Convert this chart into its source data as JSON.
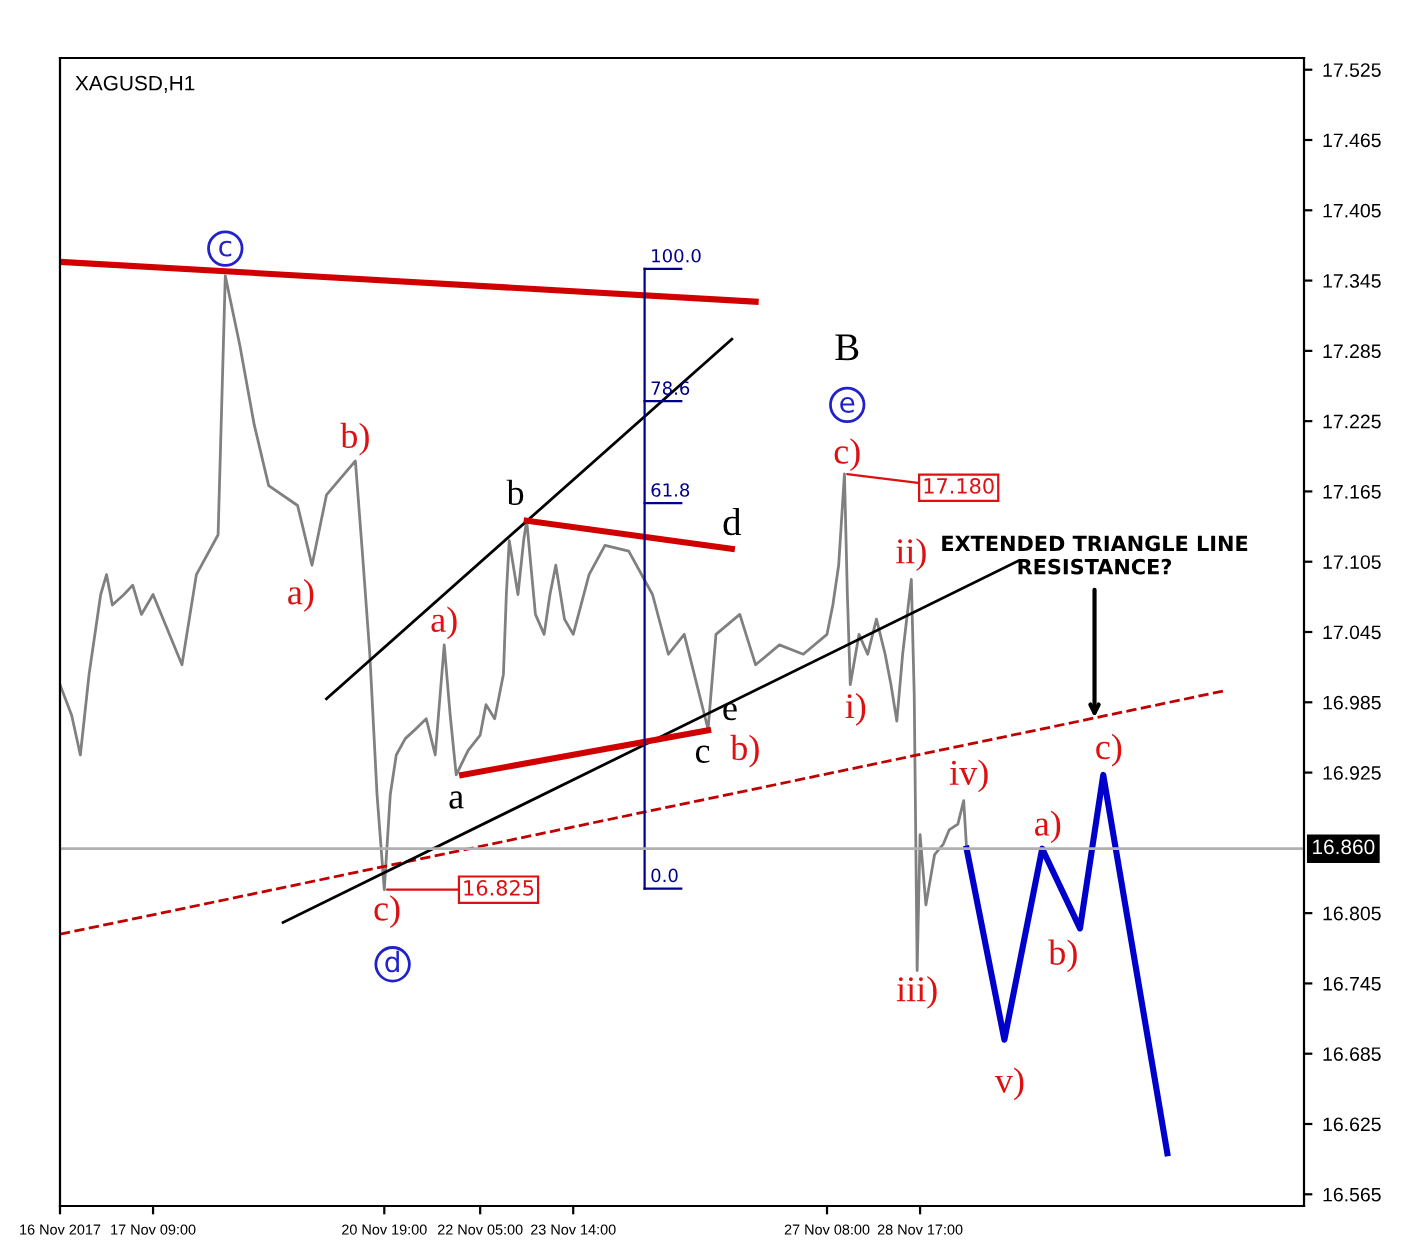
{
  "chart_data": {
    "type": "line",
    "title": "XAGUSD,H1",
    "xlim": [
      "2017-11-16T00:00",
      "2017-12-04T09:09"
    ],
    "xticks": [
      {
        "value": "2017-11-16T00:00",
        "label": "16 Nov 2017"
      },
      {
        "value": "2017-11-17T09:00",
        "label": "17 Nov 09:00"
      },
      {
        "value": "2017-11-20T19:00",
        "label": "20 Nov 19:00"
      },
      {
        "value": "2017-11-22T05:00",
        "label": "22 Nov 05:00"
      },
      {
        "value": "2017-11-23T14:00",
        "label": "23 Nov 14:00"
      },
      {
        "value": "2017-11-27T08:00",
        "label": "27 Nov 08:00"
      },
      {
        "value": "2017-11-28T17:00",
        "label": "28 Nov 17:00"
      }
    ],
    "ylim": [
      16.555,
      17.535
    ],
    "yticks": [
      17.525,
      17.465,
      17.405,
      17.345,
      17.285,
      17.225,
      17.165,
      17.105,
      17.045,
      16.985,
      16.925,
      16.805,
      16.745,
      16.685,
      16.625,
      16.565
    ],
    "grid": false,
    "legend": false,
    "marker": "none",
    "series": [
      {
        "color": "#808080",
        "x": [
          "2017-11-16T00:00",
          "2017-11-16T04:08",
          "2017-11-16T07:13",
          "2017-11-16T10:19",
          "2017-11-16T14:26",
          "2017-11-16T16:30",
          "2017-11-16T18:34",
          "2017-11-16T22:41",
          "2017-11-17T01:47",
          "2017-11-17T04:52",
          "2017-11-17T09:00",
          "2017-11-17T19:15",
          "2017-11-18T00:22",
          "2017-11-18T08:04",
          "2017-11-18T10:37",
          "2017-11-18T15:45",
          "2017-11-18T20:52",
          "2017-11-19T02:00",
          "2017-11-19T12:15",
          "2017-11-19T17:22",
          "2017-11-19T22:30",
          "2017-11-20T08:45",
          "2017-11-20T11:19",
          "2017-11-20T13:52",
          "2017-11-20T16:26",
          "2017-11-20T19:00",
          "2017-11-20T21:07",
          "2017-11-20T23:15",
          "2017-11-21T02:26",
          "2017-11-21T05:37",
          "2017-11-21T09:52",
          "2017-11-21T13:04",
          "2017-11-21T16:15",
          "2017-11-21T18:22",
          "2017-11-21T20:30",
          "2017-11-22T00:45",
          "2017-11-22T05:00",
          "2017-11-22T07:04",
          "2017-11-22T10:09",
          "2017-11-22T13:15",
          "2017-11-22T14:17",
          "2017-11-22T15:19",
          "2017-11-22T18:24",
          "2017-11-22T20:28",
          "2017-11-22T21:30",
          "2017-11-23T00:36",
          "2017-11-23T03:41",
          "2017-11-23T05:45",
          "2017-11-23T07:49",
          "2017-11-23T10:54",
          "2017-11-23T14:00",
          "2017-11-23T19:37",
          "2017-11-24T01:15",
          "2017-11-24T09:41",
          "2017-11-24T18:07",
          "2017-11-24T23:45",
          "2017-11-25T05:22",
          "2017-11-25T13:49",
          "2017-11-25T16:37",
          "2017-11-26T01:04",
          "2017-11-26T06:41",
          "2017-11-26T15:07",
          "2017-11-26T23:34",
          "2017-11-27T08:00",
          "2017-11-27T10:04",
          "2017-11-27T12:08",
          "2017-11-27T14:11",
          "2017-11-27T15:13",
          "2017-11-27T16:15",
          "2017-11-27T19:21",
          "2017-11-27T22:26",
          "2017-11-28T01:32",
          "2017-11-28T04:37",
          "2017-11-28T06:41",
          "2017-11-28T08:45",
          "2017-11-28T10:49",
          "2017-11-28T13:54",
          "2017-11-28T14:56",
          "2017-11-28T15:58",
          "2017-11-28T17:00",
          "2017-11-28T19:04",
          "2017-11-28T22:09",
          "2017-11-29T01:15",
          "2017-11-29T03:19",
          "2017-11-29T06:24",
          "2017-11-29T08:28",
          "2017-11-29T09:30"
        ],
        "values": [
          17.0,
          16.974,
          16.94,
          17.009,
          17.077,
          17.094,
          17.068,
          17.077,
          17.085,
          17.06,
          17.077,
          17.017,
          17.094,
          17.128,
          17.349,
          17.29,
          17.222,
          17.17,
          17.153,
          17.102,
          17.162,
          17.191,
          17.11,
          17.026,
          16.906,
          16.825,
          16.906,
          16.94,
          16.954,
          16.961,
          16.971,
          16.94,
          17.034,
          16.974,
          16.923,
          16.944,
          16.957,
          16.983,
          16.971,
          17.009,
          17.077,
          17.123,
          17.077,
          17.124,
          17.14,
          17.06,
          17.043,
          17.077,
          17.102,
          17.056,
          17.043,
          17.094,
          17.119,
          17.114,
          17.077,
          17.026,
          17.043,
          16.962,
          17.043,
          17.06,
          17.017,
          17.034,
          17.026,
          17.043,
          17.068,
          17.102,
          17.18,
          17.077,
          17.0,
          17.043,
          17.026,
          17.056,
          17.026,
          17.0,
          16.969,
          17.026,
          17.09,
          16.991,
          16.756,
          16.872,
          16.812,
          16.855,
          16.864,
          16.876,
          16.881,
          16.901,
          16.86
        ]
      },
      {
        "color": "#0000cc",
        "x": [
          "2017-11-29T09:30",
          "2017-11-29T22:54",
          "2017-11-30T12:19",
          "2017-12-01T01:43",
          "2017-12-01T09:58",
          "2017-12-02T08:41"
        ],
        "values": [
          16.86,
          16.697,
          16.86,
          16.792,
          16.923,
          16.6
        ]
      },
      {
        "color": "#d00000",
        "x": [
          "2017-11-16T00:00",
          "2017-11-26T06:41"
        ],
        "values": [
          17.361,
          17.327
        ]
      },
      {
        "color": "#c00000",
        "line_style": "dashed",
        "x": [
          "2017-11-16T00:00",
          "2017-12-03T05:19"
        ],
        "values": [
          16.787,
          16.995
        ]
      },
      {
        "color": "#000000",
        "x": [
          "2017-11-19T22:30",
          "2017-11-25T22:15"
        ],
        "values": [
          16.988,
          17.295
        ]
      },
      {
        "color": "#000000",
        "x": [
          "2017-11-19T07:07",
          "2017-11-30T04:04"
        ],
        "values": [
          16.797,
          17.106
        ]
      },
      {
        "color": "#d00000",
        "x": [
          "2017-11-22T21:30",
          "2017-11-25T22:15"
        ],
        "values": [
          17.14,
          17.116
        ]
      },
      {
        "color": "#d00000",
        "x": [
          "2017-11-21T22:37",
          "2017-11-25T13:49"
        ],
        "values": [
          16.923,
          16.961
        ]
      },
      {
        "color": "#00008b",
        "x": [
          "2017-11-24T15:19",
          "2017-11-24T15:19"
        ],
        "values": [
          17.355,
          16.826
        ]
      },
      {
        "color": "#00008b",
        "x": [
          "2017-11-24T15:19",
          "2017-11-25T04:19"
        ],
        "values": [
          17.355,
          17.355
        ]
      },
      {
        "color": "#00008b",
        "x": [
          "2017-11-24T15:19",
          "2017-11-25T04:19"
        ],
        "values": [
          17.242,
          17.242
        ]
      },
      {
        "color": "#00008b",
        "x": [
          "2017-11-24T15:19",
          "2017-11-25T04:19"
        ],
        "values": [
          17.155,
          17.155
        ]
      },
      {
        "color": "#00008b",
        "x": [
          "2017-11-24T15:19",
          "2017-11-25T04:19"
        ],
        "values": [
          16.826,
          16.826
        ]
      }
    ],
    "ref_lines": [
      {
        "axis": "y",
        "value": 16.86,
        "label": "16.860",
        "color": "#b0b0b0"
      }
    ],
    "annotations": [
      {
        "text": "c",
        "x": "2017-11-18T10:37",
        "y": 17.349
      },
      {
        "text": "b)",
        "x": "2017-11-20T08:45",
        "y": 17.191
      },
      {
        "text": "a)",
        "x": "2017-11-19T17:22",
        "y": 17.102
      },
      {
        "text": "a)",
        "x": "2017-11-21T16:15",
        "y": 17.034
      },
      {
        "text": "a",
        "x": "2017-11-21T20:30",
        "y": 16.923
      },
      {
        "text": "b",
        "x": "2017-11-22T21:30",
        "y": 17.14
      },
      {
        "text": "d",
        "x": "2017-11-25T22:15",
        "y": 17.116
      },
      {
        "text": "c",
        "x": "2017-11-25T13:49",
        "y": 16.962
      },
      {
        "text": "e",
        "x": "2017-11-25T13:49",
        "y": 16.961
      },
      {
        "text": "b)",
        "x": "2017-11-25T13:49",
        "y": 16.962
      },
      {
        "text": "B",
        "x": "2017-11-27T14:11",
        "y": 17.18
      },
      {
        "text": "e",
        "x": "2017-11-27T14:11",
        "y": 17.18
      },
      {
        "text": "c)",
        "x": "2017-11-27T14:11",
        "y": 17.18
      },
      {
        "text": "17.180",
        "x": "2017-11-27T14:11",
        "y": 17.18
      },
      {
        "text": "ii)",
        "x": "2017-11-28T13:54",
        "y": 17.09
      },
      {
        "text": "i)",
        "x": "2017-11-27T16:15",
        "y": 17.0
      },
      {
        "text": "iii)",
        "x": "2017-11-28T15:58",
        "y": 16.756
      },
      {
        "text": "iv)",
        "x": "2017-11-29T08:28",
        "y": 16.901
      },
      {
        "text": "v)",
        "x": "2017-11-29T22:54",
        "y": 16.697
      },
      {
        "text": "a)",
        "x": "2017-11-30T12:19",
        "y": 16.86
      },
      {
        "text": "b)",
        "x": "2017-12-01T01:43",
        "y": 16.792
      },
      {
        "text": "c)",
        "x": "2017-12-01T09:58",
        "y": 16.923
      },
      {
        "text": "c)",
        "x": "2017-11-20T19:00",
        "y": 16.825
      },
      {
        "text": "d",
        "x": "2017-11-20T19:00",
        "y": 16.825
      },
      {
        "text": "16.825",
        "x": "2017-11-20T19:00",
        "y": 16.825
      },
      {
        "text": "100.0",
        "x": "2017-11-24T15:19",
        "y": 17.355
      },
      {
        "text": "78.6",
        "x": "2017-11-24T15:19",
        "y": 17.242
      },
      {
        "text": "61.8",
        "x": "2017-11-24T15:19",
        "y": 17.155
      },
      {
        "text": "0.0",
        "x": "2017-11-24T15:19",
        "y": 16.826
      },
      {
        "text": "EXTENDED TRIANGLE LINE\nRESISTANCE?",
        "x": "2017-12-01T06:52",
        "y": 16.972
      }
    ]
  }
}
